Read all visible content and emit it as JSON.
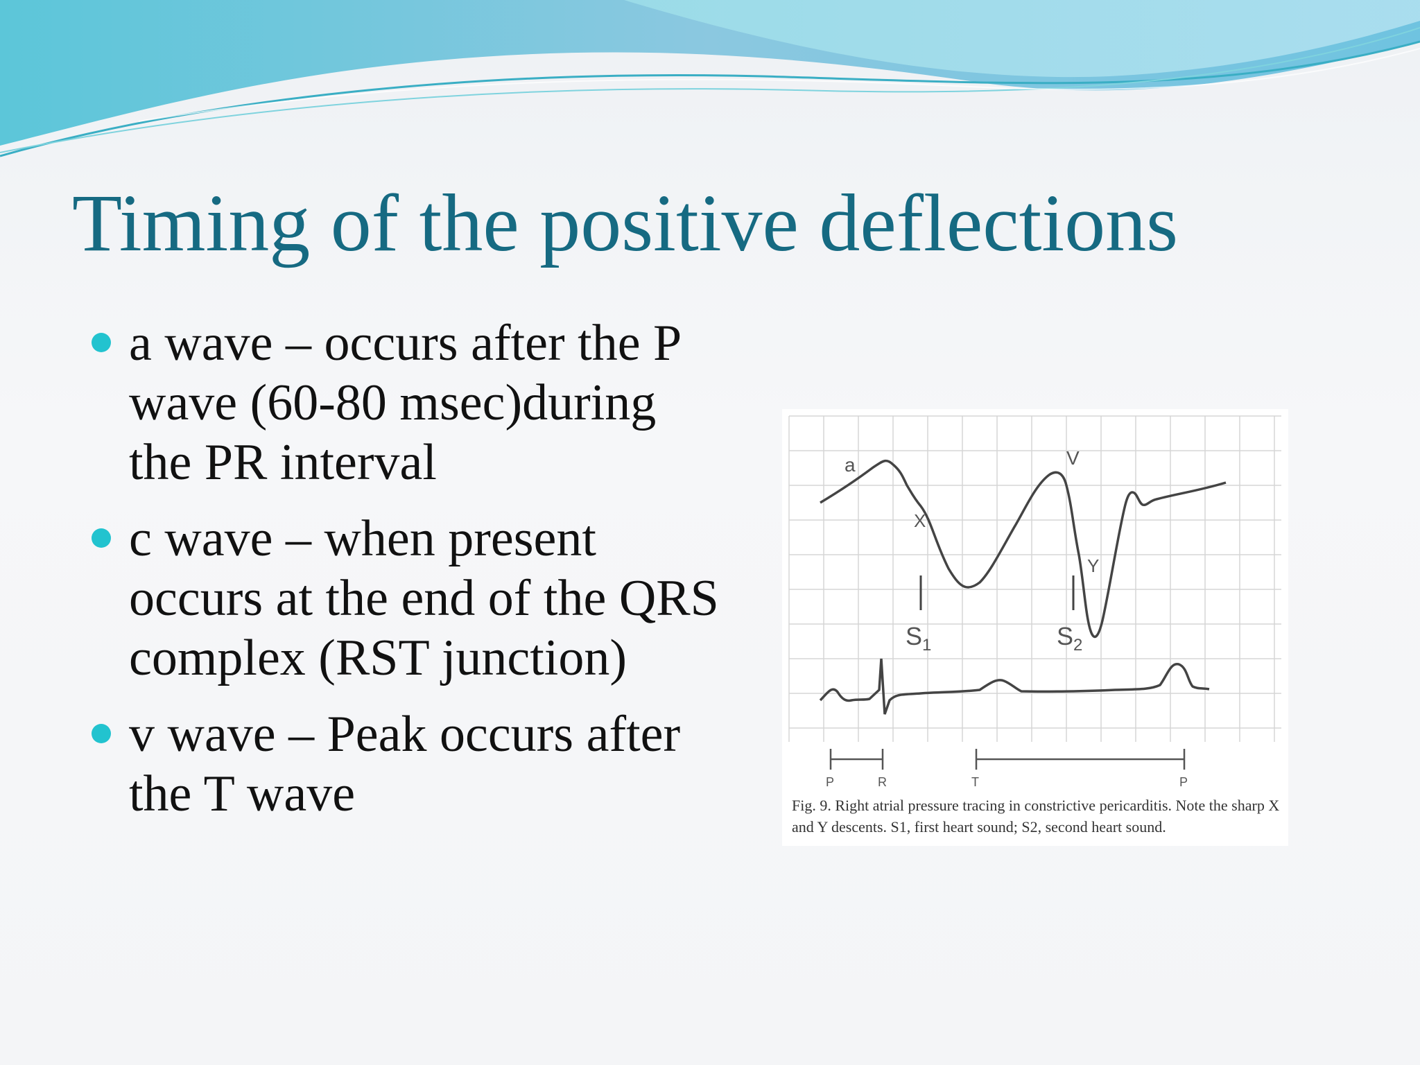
{
  "slide": {
    "title": "Timing of the positive deflections",
    "bullets": [
      {
        "text": "a wave – occurs after the P wave (60-80 msec)during the PR interval"
      },
      {
        "text": "c wave – when present occurs at the end of the QRS complex (RST junction)"
      },
      {
        "text": "v wave – Peak occurs after the T wave"
      }
    ],
    "bullet_color": "#22c3cf",
    "title_color": "#166a82"
  },
  "figure": {
    "labels": {
      "a": "a",
      "x": "X",
      "v": "V",
      "y": "Y",
      "s1": "S",
      "s1_sub": "1",
      "s2": "S",
      "s2_sub": "2"
    },
    "timeline": {
      "p1": "P",
      "r": "R",
      "t": "T",
      "p2": "P"
    },
    "caption": "Fig. 9.  Right atrial pressure tracing in constrictive pericarditis.  Note the sharp X and Y descents.  S1, first heart sound; S2, second heart sound."
  }
}
